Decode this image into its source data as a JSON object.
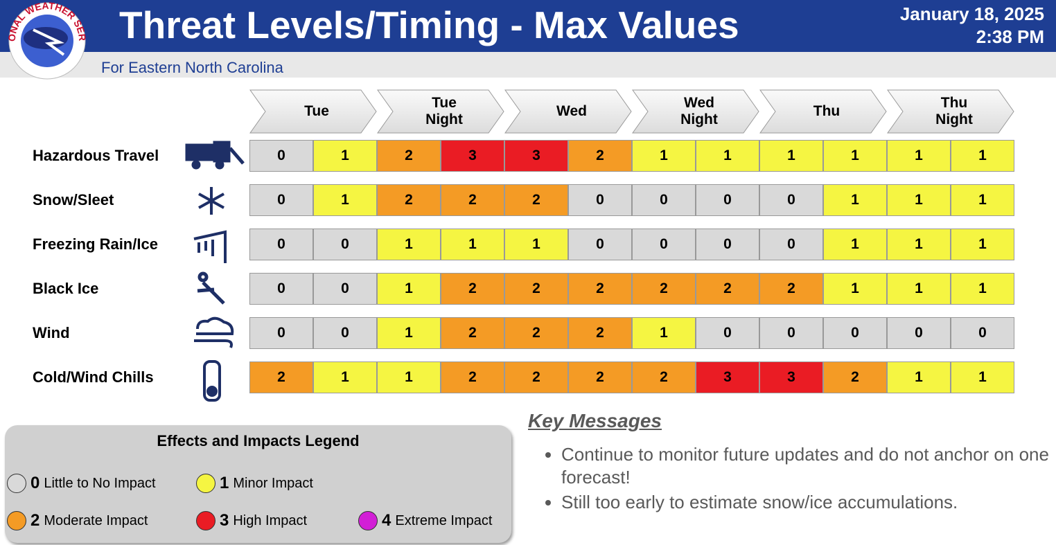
{
  "header": {
    "logo_text": "NATIONAL WEATHER SERVICE",
    "title": "Threat Levels/Timing - Max Values",
    "date": "January 18, 2025",
    "time": "2:38 PM",
    "subtitle": "For Eastern North Carolina"
  },
  "table": {
    "periods": [
      "Tue",
      "Tue Night",
      "Wed",
      "Wed Night",
      "Thu",
      "Thu Night"
    ],
    "rows": [
      {
        "label": "Hazardous Travel",
        "values": [
          0,
          1,
          2,
          3,
          3,
          2,
          1,
          1,
          1,
          1,
          1,
          1
        ]
      },
      {
        "label": "Snow/Sleet",
        "values": [
          0,
          1,
          2,
          2,
          2,
          0,
          0,
          0,
          0,
          1,
          1,
          1
        ]
      },
      {
        "label": "Freezing Rain/Ice",
        "values": [
          0,
          0,
          1,
          1,
          1,
          0,
          0,
          0,
          0,
          1,
          1,
          1
        ]
      },
      {
        "label": "Black Ice",
        "values": [
          0,
          0,
          1,
          2,
          2,
          2,
          2,
          2,
          2,
          1,
          1,
          1
        ]
      },
      {
        "label": "Wind",
        "values": [
          0,
          0,
          1,
          2,
          2,
          2,
          1,
          0,
          0,
          0,
          0,
          0
        ]
      },
      {
        "label": "Cold/Wind Chills",
        "values": [
          2,
          1,
          1,
          2,
          2,
          2,
          2,
          3,
          3,
          2,
          1,
          1
        ]
      }
    ]
  },
  "legend": {
    "title": "Effects and Impacts Legend",
    "levels": [
      {
        "level": 0,
        "label": "Little to No Impact",
        "color": "#d9d9d9"
      },
      {
        "level": 1,
        "label": "Minor Impact",
        "color": "#f5f542"
      },
      {
        "level": 2,
        "label": "Moderate Impact",
        "color": "#f49b25"
      },
      {
        "level": 3,
        "label": "High Impact",
        "color": "#ea1c24"
      },
      {
        "level": 4,
        "label": "Extreme Impact",
        "color": "#d21fd6"
      }
    ]
  },
  "key_messages": {
    "title": "Key Messages",
    "items": [
      "Continue to monitor future updates and do not anchor on one forecast!",
      "Still too early to estimate snow/ice accumulations."
    ]
  }
}
